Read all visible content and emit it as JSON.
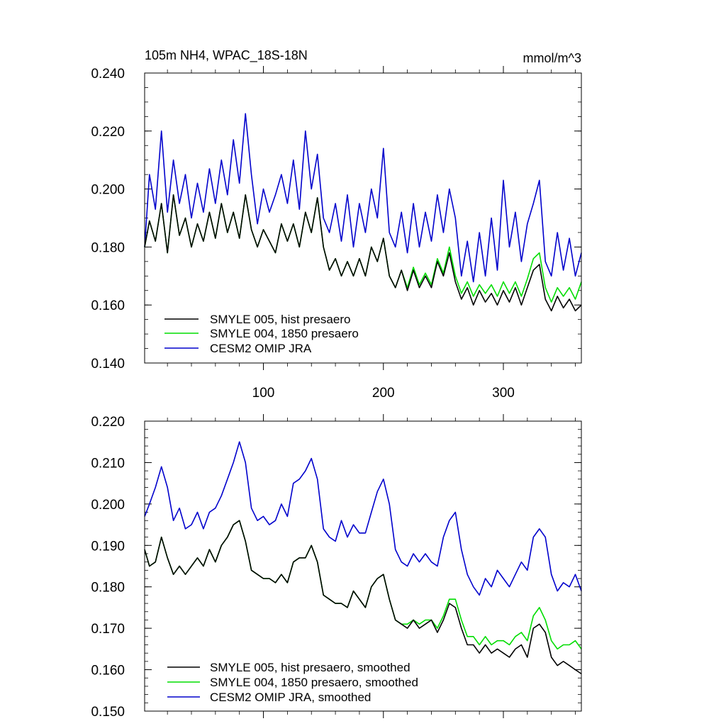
{
  "chart_data": [
    {
      "type": "line",
      "title": "105m NH4, WPAC_18S-18N",
      "units": "mmol/m^3",
      "xlabel": "",
      "ylabel": "",
      "xlim": [
        1,
        365
      ],
      "ylim": [
        0.14,
        0.24
      ],
      "x_ticks": [
        100,
        200,
        300
      ],
      "y_ticks": [
        "0.140",
        "0.160",
        "0.180",
        "0.200",
        "0.220",
        "0.240"
      ],
      "grid": false,
      "legend": "bottom-left",
      "series": [
        {
          "name": "SMYLE 005, hist presaero",
          "color": "#000000",
          "x": [
            1,
            5,
            10,
            15,
            20,
            25,
            30,
            35,
            40,
            45,
            50,
            55,
            60,
            65,
            70,
            75,
            80,
            85,
            90,
            95,
            100,
            105,
            110,
            115,
            120,
            125,
            130,
            135,
            140,
            145,
            150,
            155,
            160,
            165,
            170,
            175,
            180,
            185,
            190,
            195,
            200,
            205,
            210,
            215,
            220,
            225,
            230,
            235,
            240,
            245,
            250,
            255,
            260,
            265,
            270,
            275,
            280,
            285,
            290,
            295,
            300,
            305,
            310,
            315,
            320,
            325,
            330,
            335,
            340,
            345,
            350,
            355,
            360,
            365
          ],
          "values": [
            0.18,
            0.189,
            0.182,
            0.195,
            0.178,
            0.198,
            0.184,
            0.19,
            0.18,
            0.188,
            0.182,
            0.192,
            0.183,
            0.195,
            0.185,
            0.192,
            0.183,
            0.198,
            0.186,
            0.18,
            0.186,
            0.182,
            0.178,
            0.188,
            0.182,
            0.188,
            0.18,
            0.192,
            0.185,
            0.197,
            0.18,
            0.172,
            0.176,
            0.17,
            0.175,
            0.17,
            0.176,
            0.17,
            0.18,
            0.175,
            0.183,
            0.17,
            0.166,
            0.172,
            0.165,
            0.172,
            0.166,
            0.17,
            0.166,
            0.175,
            0.17,
            0.178,
            0.168,
            0.162,
            0.166,
            0.16,
            0.165,
            0.161,
            0.164,
            0.16,
            0.165,
            0.161,
            0.166,
            0.16,
            0.166,
            0.172,
            0.174,
            0.162,
            0.158,
            0.163,
            0.159,
            0.162,
            0.158,
            0.16
          ]
        },
        {
          "name": "SMYLE 004, 1850 presaero",
          "color": "#00dd00",
          "x": [
            1,
            5,
            10,
            15,
            20,
            25,
            30,
            35,
            40,
            45,
            50,
            55,
            60,
            65,
            70,
            75,
            80,
            85,
            90,
            95,
            100,
            105,
            110,
            115,
            120,
            125,
            130,
            135,
            140,
            145,
            150,
            155,
            160,
            165,
            170,
            175,
            180,
            185,
            190,
            195,
            200,
            205,
            210,
            215,
            220,
            225,
            230,
            235,
            240,
            245,
            250,
            255,
            260,
            265,
            270,
            275,
            280,
            285,
            290,
            295,
            300,
            305,
            310,
            315,
            320,
            325,
            330,
            335,
            340,
            345,
            350,
            355,
            360,
            365
          ],
          "values": [
            0.18,
            0.189,
            0.182,
            0.195,
            0.178,
            0.198,
            0.184,
            0.19,
            0.18,
            0.188,
            0.182,
            0.192,
            0.183,
            0.195,
            0.185,
            0.192,
            0.183,
            0.198,
            0.186,
            0.18,
            0.186,
            0.182,
            0.178,
            0.188,
            0.182,
            0.188,
            0.18,
            0.192,
            0.185,
            0.197,
            0.18,
            0.172,
            0.176,
            0.17,
            0.175,
            0.17,
            0.176,
            0.17,
            0.18,
            0.175,
            0.183,
            0.17,
            0.166,
            0.172,
            0.166,
            0.173,
            0.167,
            0.171,
            0.167,
            0.176,
            0.171,
            0.18,
            0.17,
            0.164,
            0.168,
            0.163,
            0.167,
            0.164,
            0.167,
            0.163,
            0.168,
            0.164,
            0.168,
            0.163,
            0.169,
            0.176,
            0.178,
            0.166,
            0.161,
            0.166,
            0.163,
            0.166,
            0.162,
            0.168
          ]
        },
        {
          "name": "CESM2 OMIP JRA",
          "color": "#0000cc",
          "x": [
            1,
            5,
            10,
            15,
            20,
            25,
            30,
            35,
            40,
            45,
            50,
            55,
            60,
            65,
            70,
            75,
            80,
            85,
            90,
            95,
            100,
            105,
            110,
            115,
            120,
            125,
            130,
            135,
            140,
            145,
            150,
            155,
            160,
            165,
            170,
            175,
            180,
            185,
            190,
            195,
            200,
            205,
            210,
            215,
            220,
            225,
            230,
            235,
            240,
            245,
            250,
            255,
            260,
            265,
            270,
            275,
            280,
            285,
            290,
            295,
            300,
            305,
            310,
            315,
            320,
            325,
            330,
            335,
            340,
            345,
            350,
            355,
            360,
            365
          ],
          "values": [
            0.18,
            0.205,
            0.193,
            0.22,
            0.192,
            0.21,
            0.195,
            0.205,
            0.19,
            0.202,
            0.192,
            0.207,
            0.195,
            0.21,
            0.198,
            0.217,
            0.202,
            0.226,
            0.205,
            0.188,
            0.2,
            0.192,
            0.198,
            0.205,
            0.195,
            0.21,
            0.193,
            0.22,
            0.2,
            0.212,
            0.19,
            0.185,
            0.195,
            0.182,
            0.198,
            0.18,
            0.195,
            0.185,
            0.2,
            0.19,
            0.214,
            0.185,
            0.18,
            0.192,
            0.178,
            0.195,
            0.18,
            0.192,
            0.182,
            0.198,
            0.185,
            0.2,
            0.19,
            0.17,
            0.182,
            0.168,
            0.185,
            0.17,
            0.19,
            0.172,
            0.203,
            0.18,
            0.192,
            0.175,
            0.188,
            0.195,
            0.203,
            0.175,
            0.17,
            0.185,
            0.172,
            0.183,
            0.17,
            0.178
          ]
        }
      ]
    },
    {
      "type": "line",
      "title": "",
      "xlabel": "",
      "ylabel": "",
      "xlim": [
        1,
        365
      ],
      "ylim": [
        0.15,
        0.22
      ],
      "y_ticks": [
        "0.150",
        "0.160",
        "0.170",
        "0.180",
        "0.190",
        "0.200",
        "0.210",
        "0.220"
      ],
      "grid": false,
      "legend": "bottom-left",
      "series": [
        {
          "name": "SMYLE 005, hist presaero, smoothed",
          "color": "#000000",
          "x": [
            1,
            5,
            10,
            15,
            20,
            25,
            30,
            35,
            40,
            45,
            50,
            55,
            60,
            65,
            70,
            75,
            80,
            85,
            90,
            95,
            100,
            105,
            110,
            115,
            120,
            125,
            130,
            135,
            140,
            145,
            150,
            155,
            160,
            165,
            170,
            175,
            180,
            185,
            190,
            195,
            200,
            205,
            210,
            215,
            220,
            225,
            230,
            235,
            240,
            245,
            250,
            255,
            260,
            265,
            270,
            275,
            280,
            285,
            290,
            295,
            300,
            305,
            310,
            315,
            320,
            325,
            330,
            335,
            340,
            345,
            350,
            355,
            360,
            365
          ],
          "values": [
            0.189,
            0.185,
            0.186,
            0.192,
            0.187,
            0.183,
            0.185,
            0.183,
            0.185,
            0.187,
            0.185,
            0.189,
            0.186,
            0.19,
            0.192,
            0.195,
            0.196,
            0.191,
            0.184,
            0.183,
            0.182,
            0.182,
            0.181,
            0.183,
            0.181,
            0.186,
            0.187,
            0.187,
            0.19,
            0.186,
            0.178,
            0.177,
            0.176,
            0.176,
            0.175,
            0.179,
            0.177,
            0.175,
            0.18,
            0.182,
            0.183,
            0.177,
            0.172,
            0.171,
            0.17,
            0.172,
            0.17,
            0.171,
            0.172,
            0.169,
            0.172,
            0.176,
            0.175,
            0.17,
            0.166,
            0.166,
            0.164,
            0.166,
            0.164,
            0.165,
            0.164,
            0.163,
            0.165,
            0.166,
            0.163,
            0.17,
            0.171,
            0.169,
            0.163,
            0.161,
            0.162,
            0.161,
            0.16,
            0.159
          ]
        },
        {
          "name": "SMYLE 004, 1850 presaero, smoothed",
          "color": "#00dd00",
          "x": [
            1,
            5,
            10,
            15,
            20,
            25,
            30,
            35,
            40,
            45,
            50,
            55,
            60,
            65,
            70,
            75,
            80,
            85,
            90,
            95,
            100,
            105,
            110,
            115,
            120,
            125,
            130,
            135,
            140,
            145,
            150,
            155,
            160,
            165,
            170,
            175,
            180,
            185,
            190,
            195,
            200,
            205,
            210,
            215,
            220,
            225,
            230,
            235,
            240,
            245,
            250,
            255,
            260,
            265,
            270,
            275,
            280,
            285,
            290,
            295,
            300,
            305,
            310,
            315,
            320,
            325,
            330,
            335,
            340,
            345,
            350,
            355,
            360,
            365
          ],
          "values": [
            0.189,
            0.185,
            0.186,
            0.192,
            0.187,
            0.183,
            0.185,
            0.183,
            0.185,
            0.187,
            0.185,
            0.189,
            0.186,
            0.19,
            0.192,
            0.195,
            0.196,
            0.191,
            0.184,
            0.183,
            0.182,
            0.182,
            0.181,
            0.183,
            0.181,
            0.186,
            0.187,
            0.187,
            0.19,
            0.186,
            0.178,
            0.177,
            0.176,
            0.176,
            0.175,
            0.179,
            0.177,
            0.175,
            0.18,
            0.182,
            0.183,
            0.177,
            0.172,
            0.171,
            0.171,
            0.172,
            0.171,
            0.172,
            0.172,
            0.17,
            0.173,
            0.177,
            0.177,
            0.172,
            0.168,
            0.168,
            0.166,
            0.168,
            0.166,
            0.167,
            0.167,
            0.166,
            0.168,
            0.169,
            0.167,
            0.173,
            0.175,
            0.172,
            0.167,
            0.165,
            0.166,
            0.166,
            0.167,
            0.165
          ]
        },
        {
          "name": "CESM2 OMIP JRA, smoothed",
          "color": "#0000cc",
          "x": [
            1,
            5,
            10,
            15,
            20,
            25,
            30,
            35,
            40,
            45,
            50,
            55,
            60,
            65,
            70,
            75,
            80,
            85,
            90,
            95,
            100,
            105,
            110,
            115,
            120,
            125,
            130,
            135,
            140,
            145,
            150,
            155,
            160,
            165,
            170,
            175,
            180,
            185,
            190,
            195,
            200,
            205,
            210,
            215,
            220,
            225,
            230,
            235,
            240,
            245,
            250,
            255,
            260,
            265,
            270,
            275,
            280,
            285,
            290,
            295,
            300,
            305,
            310,
            315,
            320,
            325,
            330,
            335,
            340,
            345,
            350,
            355,
            360,
            365
          ],
          "values": [
            0.197,
            0.2,
            0.204,
            0.209,
            0.204,
            0.196,
            0.199,
            0.194,
            0.195,
            0.198,
            0.194,
            0.198,
            0.199,
            0.202,
            0.206,
            0.21,
            0.215,
            0.21,
            0.199,
            0.196,
            0.197,
            0.195,
            0.196,
            0.2,
            0.197,
            0.205,
            0.206,
            0.208,
            0.211,
            0.206,
            0.194,
            0.192,
            0.191,
            0.196,
            0.192,
            0.195,
            0.193,
            0.193,
            0.198,
            0.203,
            0.206,
            0.2,
            0.189,
            0.186,
            0.185,
            0.188,
            0.186,
            0.188,
            0.186,
            0.185,
            0.192,
            0.196,
            0.198,
            0.189,
            0.183,
            0.18,
            0.178,
            0.182,
            0.18,
            0.184,
            0.182,
            0.18,
            0.183,
            0.186,
            0.184,
            0.192,
            0.194,
            0.192,
            0.183,
            0.179,
            0.181,
            0.18,
            0.183,
            0.179
          ]
        }
      ]
    }
  ]
}
